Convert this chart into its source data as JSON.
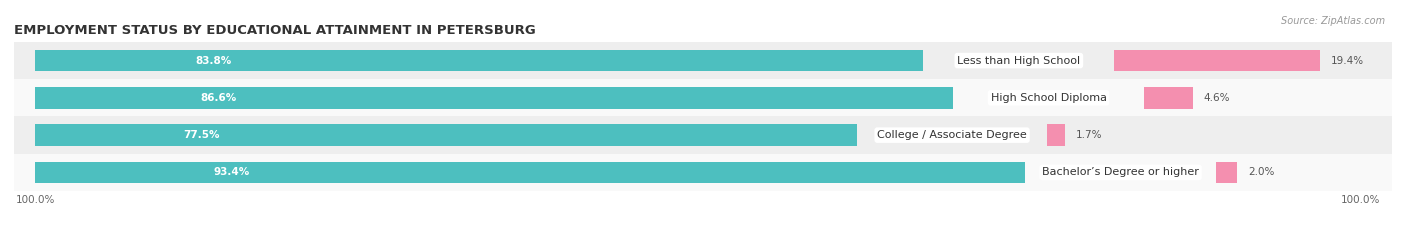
{
  "title": "EMPLOYMENT STATUS BY EDUCATIONAL ATTAINMENT IN PETERSBURG",
  "source": "Source: ZipAtlas.com",
  "categories": [
    "Less than High School",
    "High School Diploma",
    "College / Associate Degree",
    "Bachelor’s Degree or higher"
  ],
  "in_labor_force": [
    83.8,
    86.6,
    77.5,
    93.4
  ],
  "unemployed": [
    19.4,
    4.6,
    1.7,
    2.0
  ],
  "bar_color_labor": "#4DBFBF",
  "bar_color_unemployed": "#F48FAF",
  "bar_height": 0.58,
  "title_fontsize": 9.5,
  "label_fontsize": 8,
  "value_fontsize": 7.5,
  "source_fontsize": 7,
  "tick_fontsize": 7.5,
  "legend_fontsize": 8,
  "x_left_label": "100.0%",
  "x_right_label": "100.0%",
  "figsize": [
    14.06,
    2.33
  ],
  "dpi": 100,
  "row_bg_even": "#eeeeee",
  "row_bg_odd": "#f9f9f9"
}
